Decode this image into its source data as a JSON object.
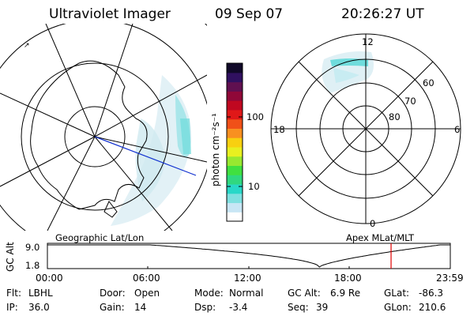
{
  "header": {
    "instrument": "Ultraviolet Imager",
    "date": "09 Sep 07",
    "time": "20:26:27 UT"
  },
  "colorbar": {
    "unit_label": "photon cm⁻²s⁻¹",
    "ticks": [
      "100",
      "10"
    ],
    "colors": [
      "#ffffff",
      "#c8e6f5",
      "#7fe0e0",
      "#28d8c8",
      "#30d880",
      "#40e040",
      "#98e830",
      "#e8f020",
      "#f8d010",
      "#f89020",
      "#f05018",
      "#e01818",
      "#c00820",
      "#900838",
      "#601050",
      "#301060",
      "#100828"
    ]
  },
  "maps": {
    "left_label": "Geographic Lat/Lon",
    "right_label": "Apex MLat/MLT",
    "polar_ticks": {
      "mlt_top": "12",
      "mlt_left": "18",
      "mlt_right": "6",
      "mlt_bottom": "0",
      "lat_60": "60",
      "lat_70": "70",
      "lat_80": "80"
    }
  },
  "alt_plot": {
    "ylabel": "GC Alt",
    "y_top": "9.0",
    "y_bottom": "1.8",
    "x_ticks": [
      "00:00",
      "06:00",
      "12:00",
      "18:00",
      "23:59"
    ],
    "current_time_fraction": 0.853,
    "marker_color": "#e00000"
  },
  "footer": {
    "row1": [
      {
        "label": "Flt:",
        "value": "LBHL"
      },
      {
        "label": "Door:",
        "value": "Open"
      },
      {
        "label": "Mode:",
        "value": "Normal"
      },
      {
        "label": "GC Alt:",
        "value": "6.9 Re"
      },
      {
        "label": "GLat:",
        "value": "-86.3"
      }
    ],
    "row2": [
      {
        "label": "IP:",
        "value": "36.0"
      },
      {
        "label": "Gain:",
        "value": "14"
      },
      {
        "label": "Dsp:",
        "value": "-3.4"
      },
      {
        "label": "Seq:",
        "value": "39"
      },
      {
        "label": "GLon:",
        "value": "210.6"
      }
    ]
  }
}
